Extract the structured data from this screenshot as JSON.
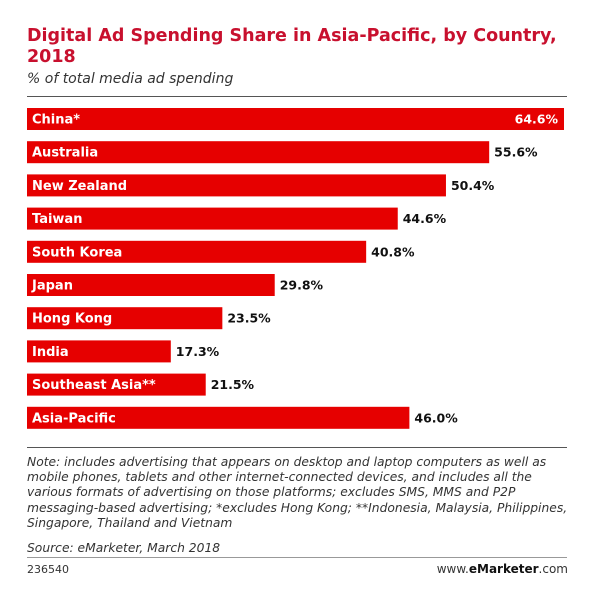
{
  "chart_data": {
    "type": "bar",
    "orientation": "horizontal",
    "title": "Digital Ad Spending Share in Asia-Pacific, by Country, 2018",
    "subtitle": "% of total media ad spending",
    "categories": [
      "China*",
      "Australia",
      "New Zealand",
      "Taiwan",
      "South Korea",
      "Japan",
      "Hong Kong",
      "India",
      "Southeast Asia**",
      "Asia-Pacific"
    ],
    "values": [
      64.6,
      55.6,
      50.4,
      44.6,
      40.8,
      29.8,
      23.5,
      17.3,
      21.5,
      46.0
    ],
    "value_labels": [
      "64.6%",
      "55.6%",
      "50.4%",
      "44.6%",
      "40.8%",
      "29.8%",
      "23.5%",
      "17.3%",
      "21.5%",
      "46.0%"
    ],
    "xlim": [
      0,
      64.6
    ],
    "bar_color": "#e60000",
    "grid": false,
    "legend": "none"
  },
  "note": "Note: includes advertising that appears on desktop and laptop computers as well as mobile phones, tablets and other internet-connected devices, and includes all the various formats of advertising on those platforms; excludes SMS, MMS and P2P messaging-based advertising; *excludes Hong Kong; **Indonesia, Malaysia, Philippines, Singapore, Thailand and Vietnam",
  "source": "Source: eMarketer, March 2018",
  "chart_id": "236540",
  "brand": {
    "prefix": "www.",
    "name": "eMarketer",
    "suffix": ".com"
  }
}
